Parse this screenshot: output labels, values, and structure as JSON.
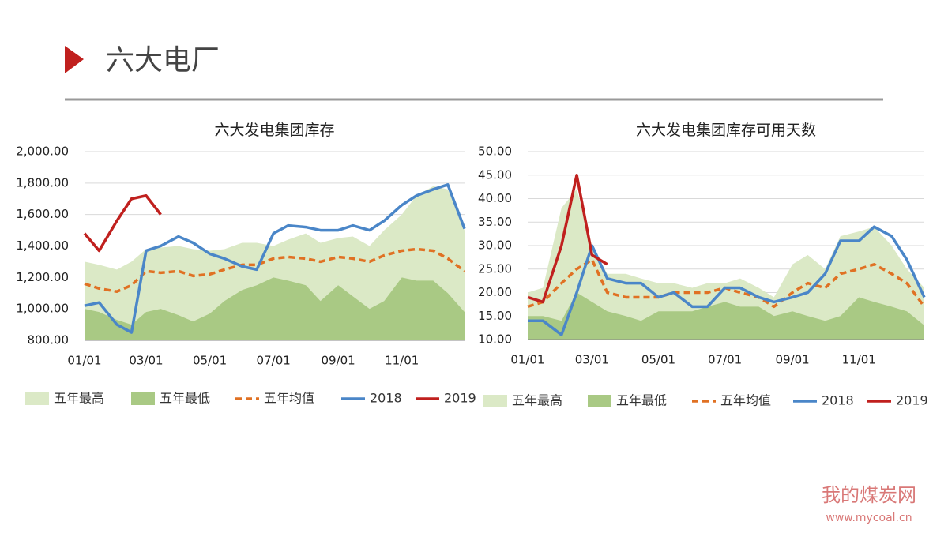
{
  "header": {
    "title": "六大电厂"
  },
  "watermark": {
    "name": "我的煤炭网",
    "url": "www.mycoal.cn"
  },
  "chart_data": [
    {
      "type": "line",
      "title": "六大发电集团库存",
      "x": [
        "01/01",
        "01/15",
        "02/01",
        "02/15",
        "03/01",
        "03/15",
        "04/01",
        "04/15",
        "05/01",
        "05/15",
        "06/01",
        "06/15",
        "07/01",
        "07/15",
        "08/01",
        "08/15",
        "09/01",
        "09/15",
        "10/01",
        "10/15",
        "11/01",
        "11/15",
        "12/01",
        "12/15",
        "12/31"
      ],
      "xticks": [
        "01/01",
        "03/01",
        "05/01",
        "07/01",
        "09/01",
        "11/01"
      ],
      "ylim": [
        800,
        2000
      ],
      "yticks": [
        {
          "value": 800,
          "label": "800.00"
        },
        {
          "value": 1000,
          "label": "1,000.00"
        },
        {
          "value": 1200,
          "label": "1,200.00"
        },
        {
          "value": 1400,
          "label": "1,400.00"
        },
        {
          "value": 1600,
          "label": "1,600.00"
        },
        {
          "value": 1800,
          "label": "1,800.00"
        },
        {
          "value": 2000,
          "label": "2,000.00"
        }
      ],
      "grid": true,
      "series": [
        {
          "name": "五年最高",
          "style": "area",
          "color": "#dbe9c6",
          "values": [
            1300,
            1280,
            1250,
            1300,
            1380,
            1390,
            1400,
            1380,
            1370,
            1380,
            1420,
            1420,
            1400,
            1440,
            1480,
            1420,
            1450,
            1460,
            1400,
            1500,
            1600,
            1720,
            1780,
            1760,
            1500
          ]
        },
        {
          "name": "五年最低",
          "style": "area",
          "color": "#a9c984",
          "values": [
            1000,
            980,
            930,
            900,
            980,
            1000,
            960,
            920,
            970,
            1050,
            1120,
            1150,
            1200,
            1180,
            1150,
            1050,
            1150,
            1080,
            1000,
            1050,
            1200,
            1180,
            1180,
            1100,
            980
          ]
        },
        {
          "name": "五年均值",
          "style": "dash",
          "color": "#e07123",
          "values": [
            1160,
            1130,
            1110,
            1150,
            1240,
            1230,
            1240,
            1210,
            1220,
            1250,
            1280,
            1280,
            1320,
            1330,
            1320,
            1300,
            1330,
            1320,
            1300,
            1340,
            1370,
            1380,
            1370,
            1320,
            1240
          ]
        },
        {
          "name": "2018",
          "style": "line",
          "color": "#4a86c8",
          "values": [
            1020,
            1040,
            900,
            850,
            1370,
            1400,
            1460,
            1420,
            1350,
            1320,
            1270,
            1250,
            1480,
            1530,
            1520,
            1500,
            1500,
            1530,
            1500,
            1560,
            1660,
            1720,
            1760,
            1790,
            1510
          ]
        },
        {
          "name": "2019",
          "style": "line",
          "color": "#c0201e",
          "values": [
            1480,
            1370,
            1560,
            1700,
            1720,
            1600,
            null,
            null,
            null,
            null,
            null,
            null,
            null,
            null,
            null,
            null,
            null,
            null,
            null,
            null,
            null,
            null,
            null,
            null,
            null
          ]
        }
      ]
    },
    {
      "type": "line",
      "title": "六大发电集团库存可用天数",
      "x": [
        "01/01",
        "01/15",
        "02/01",
        "02/15",
        "03/01",
        "03/15",
        "04/01",
        "04/15",
        "05/01",
        "05/15",
        "06/01",
        "06/15",
        "07/01",
        "07/15",
        "08/01",
        "08/15",
        "09/01",
        "09/15",
        "10/01",
        "10/15",
        "11/01",
        "11/15",
        "12/01",
        "12/15",
        "12/31"
      ],
      "xticks": [
        "01/01",
        "03/01",
        "05/01",
        "07/01",
        "09/01",
        "11/01"
      ],
      "ylim": [
        10,
        50
      ],
      "yticks": [
        {
          "value": 10,
          "label": "10.00"
        },
        {
          "value": 15,
          "label": "15.00"
        },
        {
          "value": 20,
          "label": "20.00"
        },
        {
          "value": 25,
          "label": "25.00"
        },
        {
          "value": 30,
          "label": "30.00"
        },
        {
          "value": 35,
          "label": "35.00"
        },
        {
          "value": 40,
          "label": "40.00"
        },
        {
          "value": 45,
          "label": "45.00"
        },
        {
          "value": 50,
          "label": "50.00"
        }
      ],
      "grid": true,
      "series": [
        {
          "name": "五年最高",
          "style": "area",
          "color": "#dbe9c6",
          "values": [
            20,
            21,
            38,
            42,
            30,
            24,
            24,
            23,
            22,
            22,
            21,
            22,
            22,
            23,
            21,
            19,
            26,
            28,
            25,
            32,
            33,
            34,
            30,
            25,
            21
          ]
        },
        {
          "name": "五年最低",
          "style": "area",
          "color": "#a9c984",
          "values": [
            15,
            15,
            14,
            20,
            18,
            16,
            15,
            14,
            16,
            16,
            16,
            17,
            18,
            17,
            17,
            15,
            16,
            15,
            14,
            15,
            19,
            18,
            17,
            16,
            13
          ]
        },
        {
          "name": "五年均值",
          "style": "dash",
          "color": "#e07123",
          "values": [
            17,
            18,
            22,
            25,
            27,
            20,
            19,
            19,
            19,
            20,
            20,
            20,
            21,
            20,
            19,
            17,
            20,
            22,
            21,
            24,
            25,
            26,
            24,
            22,
            17
          ]
        },
        {
          "name": "2018",
          "style": "line",
          "color": "#4a86c8",
          "values": [
            14,
            14,
            11,
            20,
            30,
            23,
            22,
            22,
            19,
            20,
            17,
            17,
            21,
            21,
            19,
            18,
            19,
            20,
            24,
            31,
            31,
            34,
            32,
            27,
            19
          ]
        },
        {
          "name": "2019",
          "style": "line",
          "color": "#c0201e",
          "values": [
            19,
            18,
            30,
            45,
            28,
            26,
            null,
            null,
            null,
            null,
            null,
            null,
            null,
            null,
            null,
            null,
            null,
            null,
            null,
            null,
            null,
            null,
            null,
            null,
            null
          ]
        }
      ]
    }
  ]
}
